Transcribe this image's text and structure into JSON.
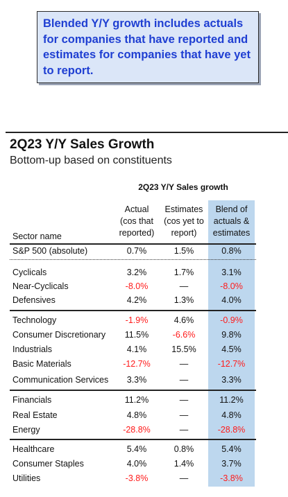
{
  "note": {
    "text": "Blended Y/Y growth includes actuals for companies that have reported and estimates for companies that have yet to report."
  },
  "header": {
    "title": "2Q23 Y/Y Sales Growth",
    "subtitle": "Bottom-up based on constituents"
  },
  "table": {
    "group_header": "2Q23 Y/Y Sales growth",
    "sector_header": "Sector name",
    "col_actual": [
      "Actual",
      "(cos that",
      "reported)"
    ],
    "col_estimates": [
      "Estimates",
      "(cos yet to",
      "report)"
    ],
    "col_blend": [
      "Blend of",
      "actuals &",
      "estimates"
    ],
    "colors": {
      "negative": "#ff1a1a",
      "blend_highlight": "#bdd7ee"
    },
    "rows": [
      {
        "name": "S&P 500 (absolute)",
        "actual": "0.7%",
        "estimates": "1.5%",
        "blend": "0.8%"
      },
      {
        "name": "Cyclicals",
        "actual": "3.2%",
        "estimates": "1.7%",
        "blend": "3.1%"
      },
      {
        "name": "Near-Cyclicals",
        "actual": "-8.0%",
        "estimates": "—",
        "blend": "-8.0%"
      },
      {
        "name": "Defensives",
        "actual": "4.2%",
        "estimates": "1.3%",
        "blend": "4.0%"
      },
      {
        "name": "Technology",
        "actual": "-1.9%",
        "estimates": "4.6%",
        "blend": "-0.9%"
      },
      {
        "name": "Consumer Discretionary",
        "actual": "11.5%",
        "estimates": "-6.6%",
        "blend": "9.8%"
      },
      {
        "name": "Industrials",
        "actual": "4.1%",
        "estimates": "15.5%",
        "blend": "4.5%"
      },
      {
        "name": "Basic Materials",
        "actual": "-12.7%",
        "estimates": "—",
        "blend": "-12.7%"
      },
      {
        "name": "Communication Services",
        "actual": "3.3%",
        "estimates": "—",
        "blend": "3.3%"
      },
      {
        "name": "Financials",
        "actual": "11.2%",
        "estimates": "—",
        "blend": "11.2%"
      },
      {
        "name": "Real Estate",
        "actual": "4.8%",
        "estimates": "—",
        "blend": "4.8%"
      },
      {
        "name": "Energy",
        "actual": "-28.8%",
        "estimates": "—",
        "blend": "-28.8%"
      },
      {
        "name": "Healthcare",
        "actual": "5.4%",
        "estimates": "0.8%",
        "blend": "5.4%"
      },
      {
        "name": "Consumer Staples",
        "actual": "4.0%",
        "estimates": "1.4%",
        "blend": "3.7%"
      },
      {
        "name": "Utilities",
        "actual": "-3.8%",
        "estimates": "—",
        "blend": "-3.8%"
      }
    ]
  }
}
